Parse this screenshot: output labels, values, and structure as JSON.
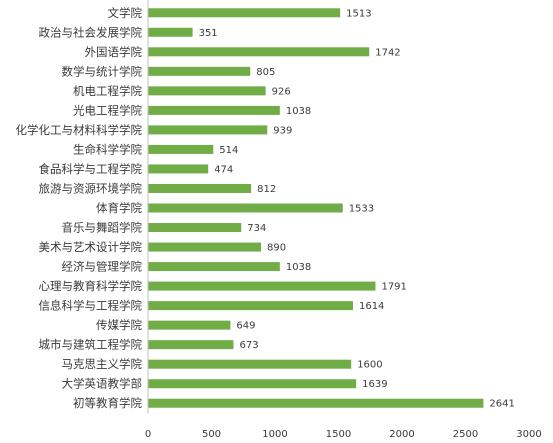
{
  "chart_data": {
    "type": "bar",
    "orientation": "horizontal",
    "categories": [
      "文学院",
      "政治与社会发展学院",
      "外国语学院",
      "数学与统计学院",
      "机电工程学院",
      "光电工程学院",
      "化学化工与材料科学学院",
      "生命科学学院",
      "食品科学与工程学院",
      "旅游与资源环境学院",
      "体育学院",
      "音乐与舞蹈学院",
      "美术与艺术设计学院",
      "经济与管理学院",
      "心理与教育科学学院",
      "信息科学与工程学院",
      "传媒学院",
      "城市与建筑工程学院",
      "马克思主义学院",
      "大学英语教学部",
      "初等教育学院"
    ],
    "values": [
      1513,
      351,
      1742,
      805,
      926,
      1038,
      939,
      514,
      474,
      812,
      1533,
      734,
      890,
      1038,
      1791,
      1614,
      649,
      673,
      1600,
      1639,
      2641
    ],
    "value_labels": [
      "1513",
      "351",
      "1742",
      "805",
      "926",
      "1038",
      "939",
      "514",
      "474",
      "812",
      "1533",
      "734",
      "890",
      "1038",
      "1791",
      "1614",
      "649",
      "673",
      "1600",
      "1639",
      "2641"
    ],
    "xticks": [
      "0",
      "500",
      "1000",
      "1500",
      "2000",
      "2500",
      "3000"
    ],
    "xlim": [
      0,
      3000
    ],
    "title": "",
    "xlabel": "",
    "ylabel": "",
    "grid": false,
    "legend": "none",
    "bar_color": "#70ad47",
    "axis_color": "#bfbfbf"
  }
}
